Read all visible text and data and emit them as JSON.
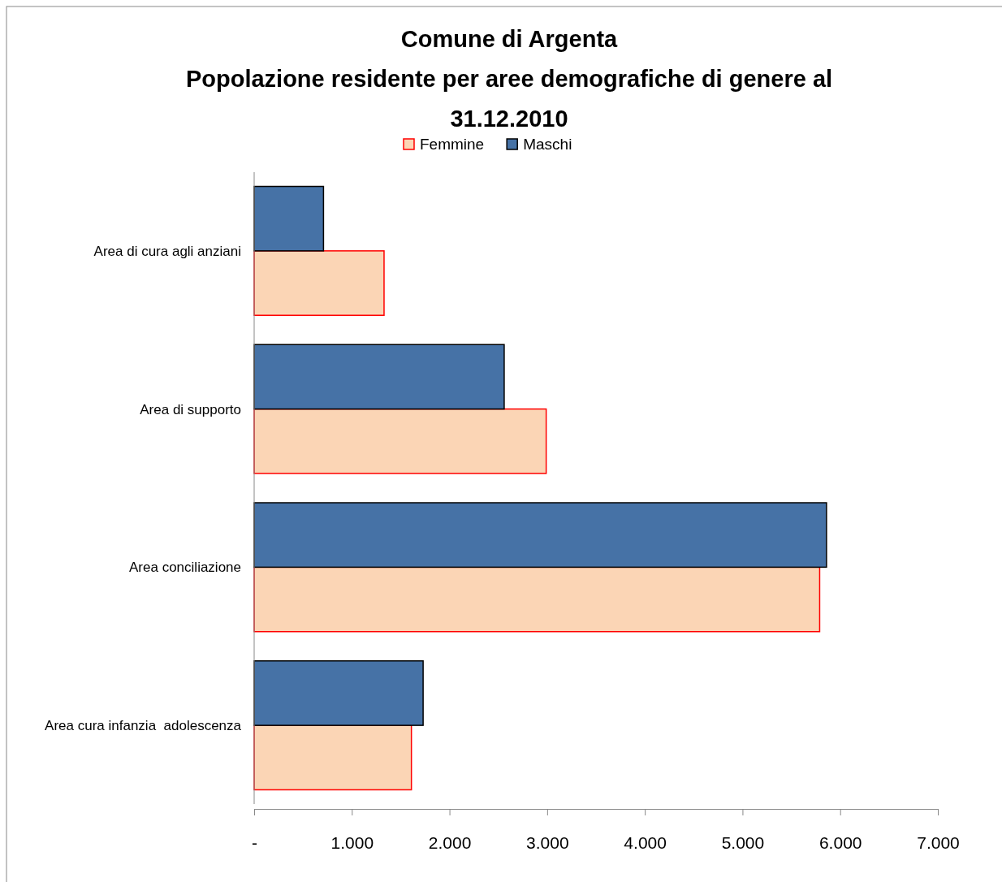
{
  "chart_data": {
    "type": "bar",
    "orientation": "horizontal",
    "title": "Comune di Argenta",
    "subtitle": "Popolazione residente per aree demografiche di genere al 31.12.2010",
    "categories": [
      "Area di cura agli anziani",
      "Area di supporto",
      "Area conciliazione",
      "Area cura infanzia  adolescenza"
    ],
    "series": [
      {
        "name": "Femmine",
        "color": "#fbd5b5",
        "values": [
          1330,
          2990,
          5790,
          1610
        ]
      },
      {
        "name": "Maschi",
        "color": "#4672a6",
        "values": [
          710,
          2560,
          5860,
          1730
        ]
      }
    ],
    "xlim": [
      0,
      7000
    ],
    "xticks": [
      {
        "value": 0,
        "label": "-"
      },
      {
        "value": 1000,
        "label": "1.000"
      },
      {
        "value": 2000,
        "label": "2.000"
      },
      {
        "value": 3000,
        "label": "3.000"
      },
      {
        "value": 4000,
        "label": "4.000"
      },
      {
        "value": 5000,
        "label": "5.000"
      },
      {
        "value": 6000,
        "label": "6.000"
      },
      {
        "value": 7000,
        "label": "7.000"
      }
    ],
    "grid": false,
    "legend": "top"
  }
}
